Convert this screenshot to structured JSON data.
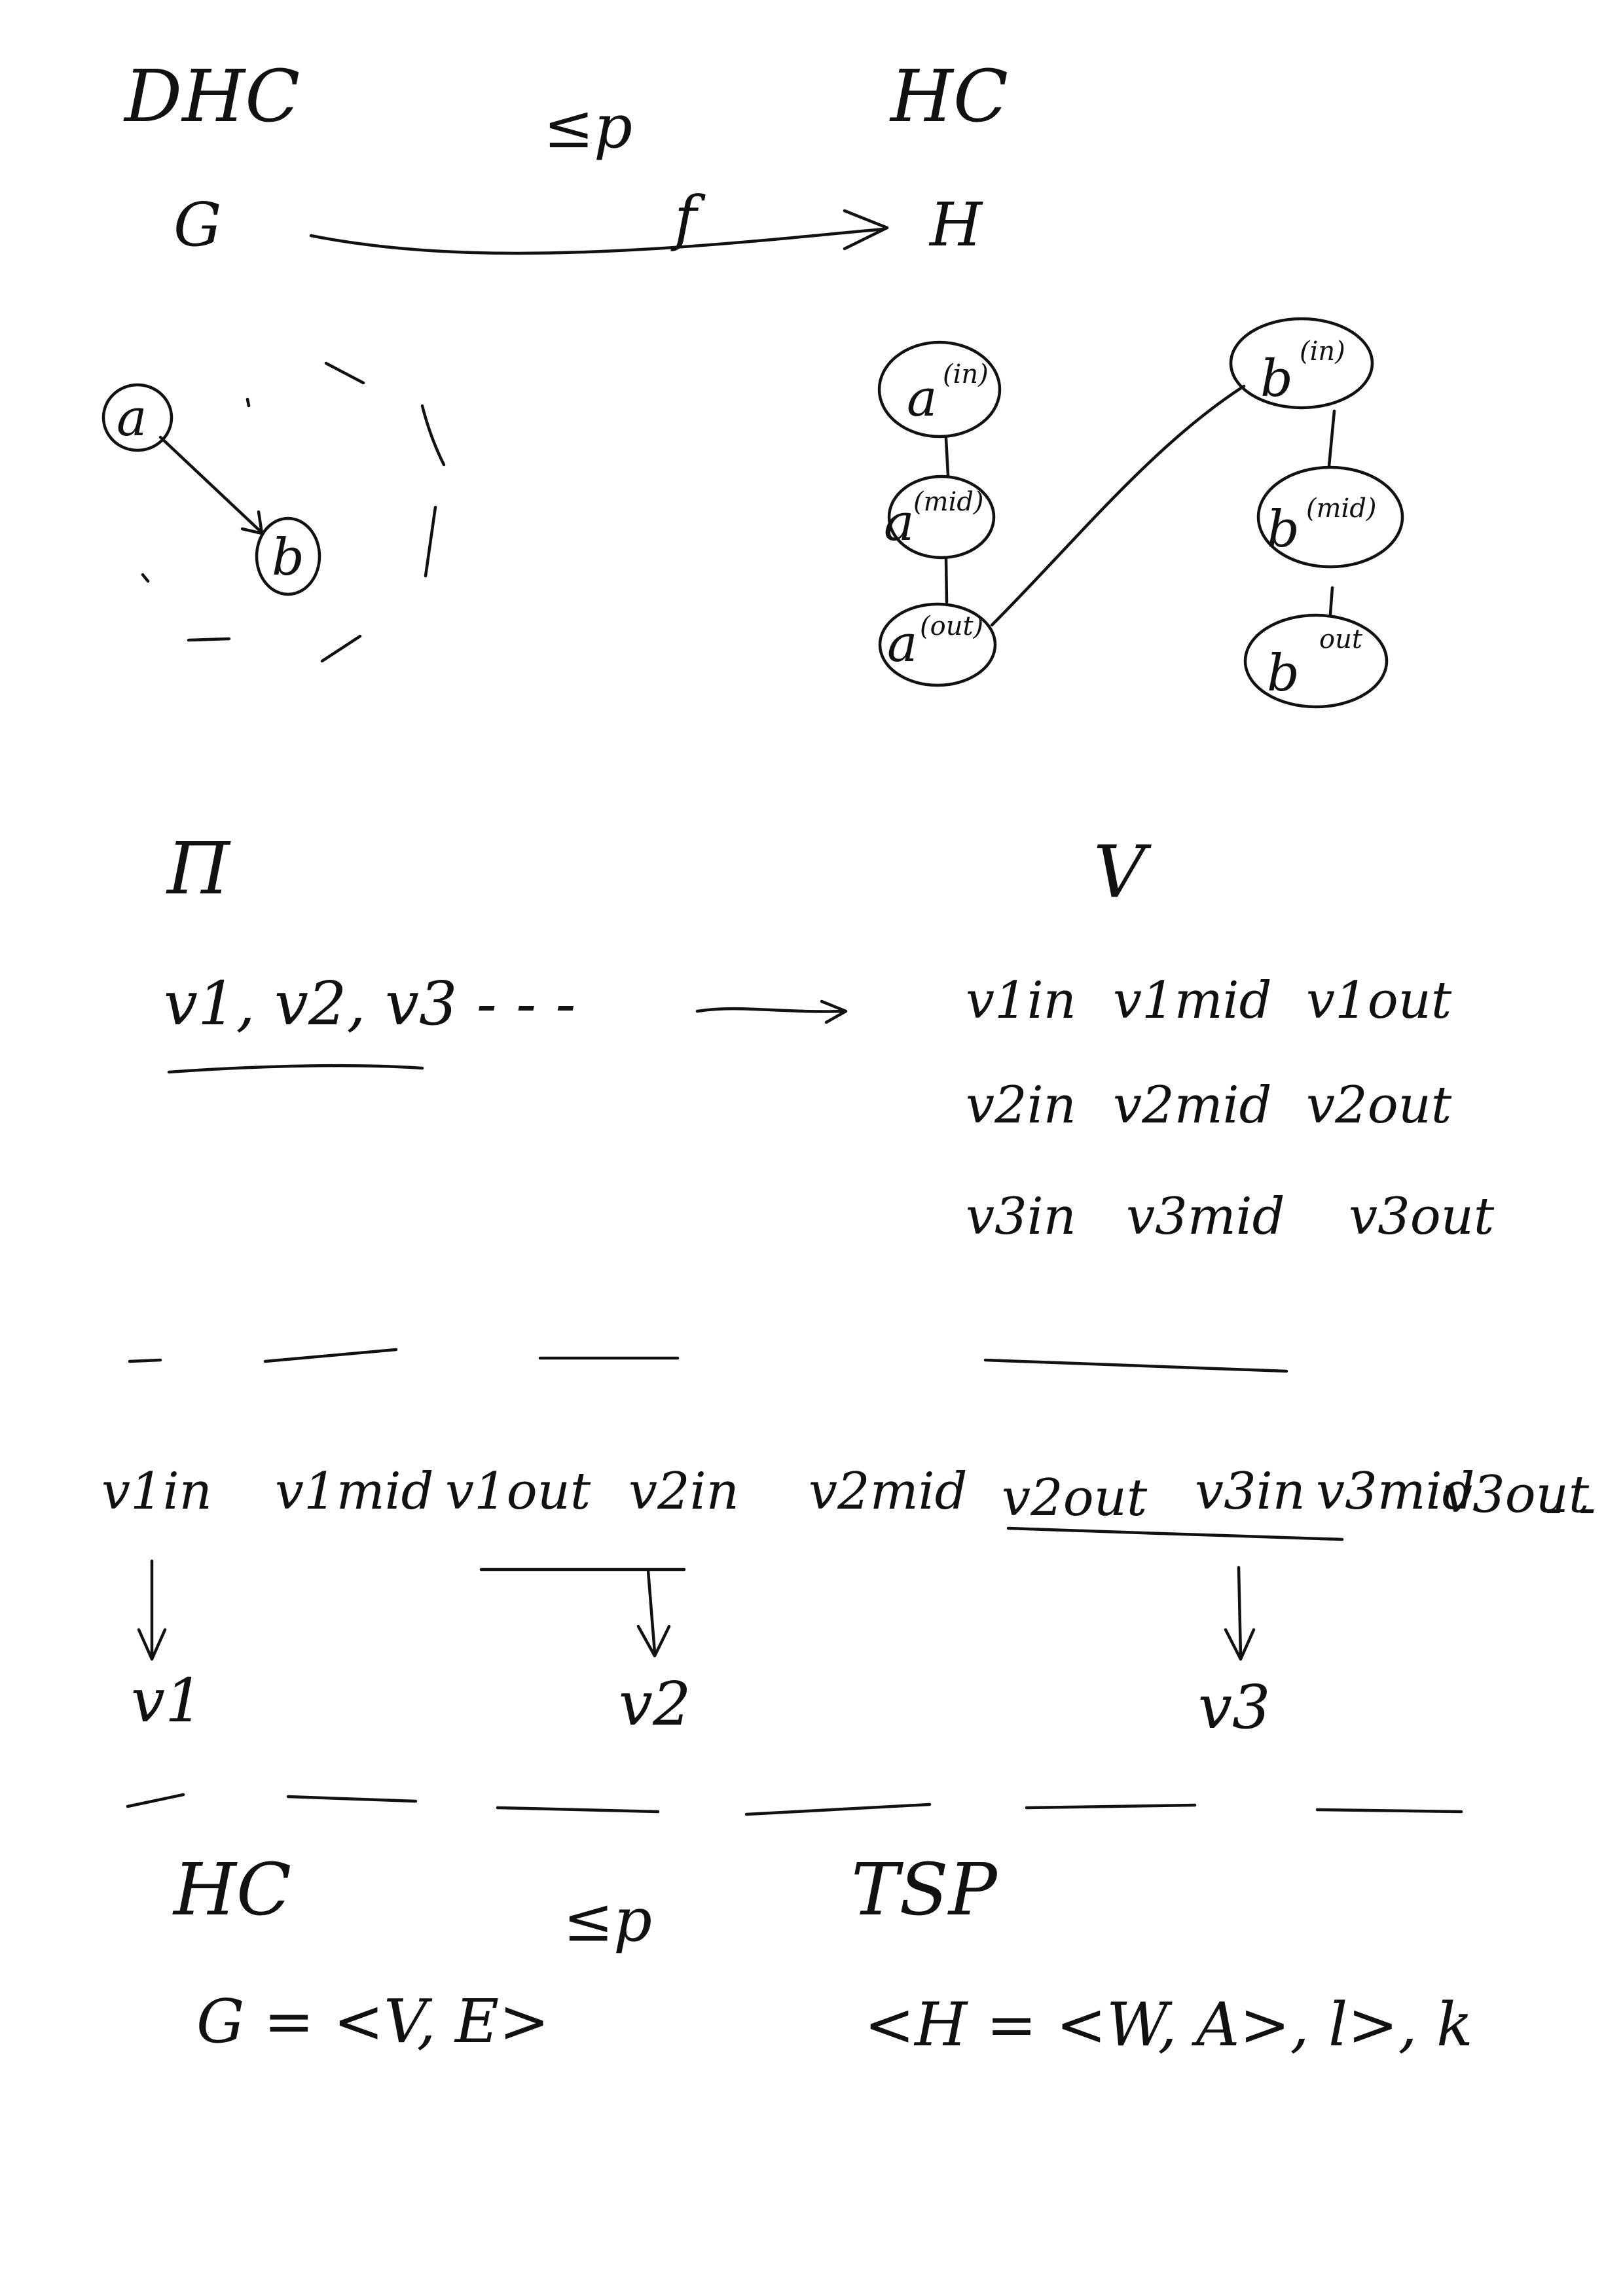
{
  "section1": {
    "left_problem": "DHC",
    "reduction_symbol": "≤p",
    "right_problem": "HC",
    "left_graph": "G",
    "function_label": "f",
    "right_graph": "H",
    "directed_nodes": [
      "a",
      "b"
    ],
    "undirected_nodes": [
      {
        "base": "a",
        "sup": "(in)"
      },
      {
        "base": "a",
        "sup": "(mid)"
      },
      {
        "base": "a",
        "sup": "(out)"
      },
      {
        "base": "b",
        "sup": "(in)"
      },
      {
        "base": "b",
        "sup": "(mid)"
      },
      {
        "base": "b",
        "sup": "out"
      }
    ]
  },
  "section2": {
    "pi_symbol": "Π",
    "v_symbol": "V",
    "sequence": "v1, v2, v3 - - -",
    "rows": [
      [
        "v1in",
        "v1mid",
        "v1out"
      ],
      [
        "v2in",
        "v2mid",
        "v2out"
      ],
      [
        "v3in",
        "v3mid",
        "v3out"
      ]
    ]
  },
  "section3": {
    "sequence": [
      "v1in",
      "v1mid",
      "v1out",
      "v2in",
      "v2mid",
      "v2out",
      "v3in",
      "v3mid",
      "v3out",
      "- -"
    ],
    "results": [
      "v1",
      "v2",
      "v3"
    ]
  },
  "section4": {
    "left_problem": "HC",
    "reduction_symbol": "≤p",
    "right_problem": "TSP",
    "left_instance": "G = <V, E>",
    "right_instance": "<H = <W, A>, l>, k"
  }
}
